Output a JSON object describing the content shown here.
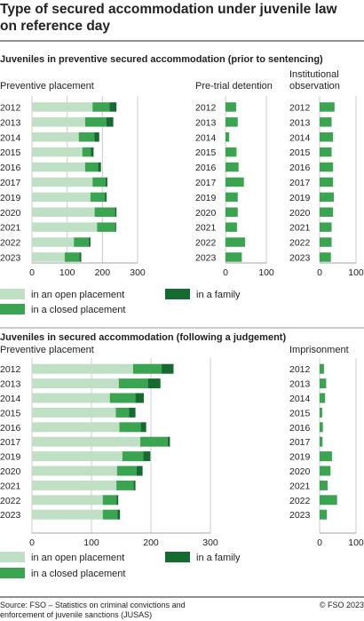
{
  "title": "Type of secured accommodation under juvenile law on reference day",
  "source": "Source: FSO – Statistics on criminal convictions and enforcement of juvenile sanctions (JUSAS)",
  "copyright": "© FSO 2023",
  "colors": {
    "open": "#bfe0c4",
    "closed": "#3aa451",
    "family": "#156a2f",
    "grid": "#cccccc",
    "rule": "#222222"
  },
  "legend": {
    "open": "in an open placement",
    "closed": "in a closed placement",
    "family": "in a family"
  },
  "chart_data": [
    {
      "type": "bar",
      "section": "Juveniles in preventive secured accommodation (prior to sentencing)",
      "panels": [
        {
          "title": "Preventive placement",
          "stacked": true,
          "categories": [
            "2012",
            "2013",
            "2014",
            "2015",
            "2016",
            "2017",
            "2019",
            "2020",
            "2021",
            "2022",
            "2023"
          ],
          "xlim": [
            0,
            300
          ],
          "xticks": [
            0,
            100,
            200,
            300
          ],
          "series": [
            {
              "name": "in an open placement",
              "key": "open",
              "values": [
                172,
                151,
                133,
                143,
                151,
                172,
                166,
                178,
                185,
                119,
                93
              ]
            },
            {
              "name": "in a closed placement",
              "key": "closed",
              "values": [
                48,
                60,
                44,
                24,
                37,
                37,
                41,
                58,
                51,
                42,
                42
              ]
            },
            {
              "name": "in a family",
              "key": "family",
              "values": [
                20,
                20,
                14,
                8,
                8,
                5,
                5,
                4,
                3,
                5,
                5
              ]
            }
          ]
        },
        {
          "title": "Pre-trial detention",
          "stacked": true,
          "categories": [
            "2012",
            "2013",
            "2014",
            "2015",
            "2016",
            "2017",
            "2019",
            "2020",
            "2021",
            "2022",
            "2023"
          ],
          "xlim": [
            0,
            100
          ],
          "xticks": [
            0,
            100
          ],
          "series": [
            {
              "name": "in a closed placement",
              "key": "closed",
              "values": [
                26,
                30,
                9,
                27,
                32,
                45,
                30,
                30,
                28,
                48,
                40
              ]
            }
          ]
        },
        {
          "title": "Institutional observation",
          "stacked": true,
          "categories": [
            "2012",
            "2013",
            "2014",
            "2015",
            "2016",
            "2017",
            "2019",
            "2020",
            "2021",
            "2022",
            "2023"
          ],
          "xlim": [
            0,
            100
          ],
          "xticks": [
            0,
            100
          ],
          "series": [
            {
              "name": "in a closed placement",
              "key": "closed",
              "values": [
                41,
                33,
                37,
                33,
                37,
                37,
                39,
                37,
                33,
                33,
                31
              ]
            }
          ]
        }
      ]
    },
    {
      "type": "bar",
      "section": "Juveniles in secured accommodation (following a judgement)",
      "panels": [
        {
          "title": "Preventive placement",
          "stacked": true,
          "categories": [
            "2012",
            "2013",
            "2014",
            "2015",
            "2016",
            "2017",
            "2019",
            "2020",
            "2021",
            "2022",
            "2023"
          ],
          "xlim": [
            0,
            300
          ],
          "xticks": [
            0,
            100,
            200,
            300
          ],
          "series": [
            {
              "name": "in an open placement",
              "key": "open",
              "values": [
                170,
                146,
                131,
                141,
                147,
                182,
                152,
                143,
                142,
                119,
                119
              ]
            },
            {
              "name": "in a closed placement",
              "key": "closed",
              "values": [
                48,
                49,
                43,
                22,
                36,
                46,
                35,
                33,
                29,
                23,
                25
              ]
            },
            {
              "name": "in a family",
              "key": "family",
              "values": [
                20,
                21,
                14,
                11,
                9,
                4,
                12,
                10,
                3,
                3,
                4
              ]
            }
          ]
        },
        {
          "title": "Imprisonment",
          "stacked": true,
          "categories": [
            "2012",
            "2013",
            "2014",
            "2015",
            "2016",
            "2017",
            "2019",
            "2020",
            "2021",
            "2022",
            "2023"
          ],
          "xlim": [
            0,
            100
          ],
          "xticks": [
            0,
            100
          ],
          "series": [
            {
              "name": "in a closed placement",
              "key": "closed",
              "values": [
                12,
                18,
                15,
                7,
                9,
                8,
                34,
                30,
                22,
                48,
                20
              ]
            }
          ]
        }
      ]
    }
  ]
}
